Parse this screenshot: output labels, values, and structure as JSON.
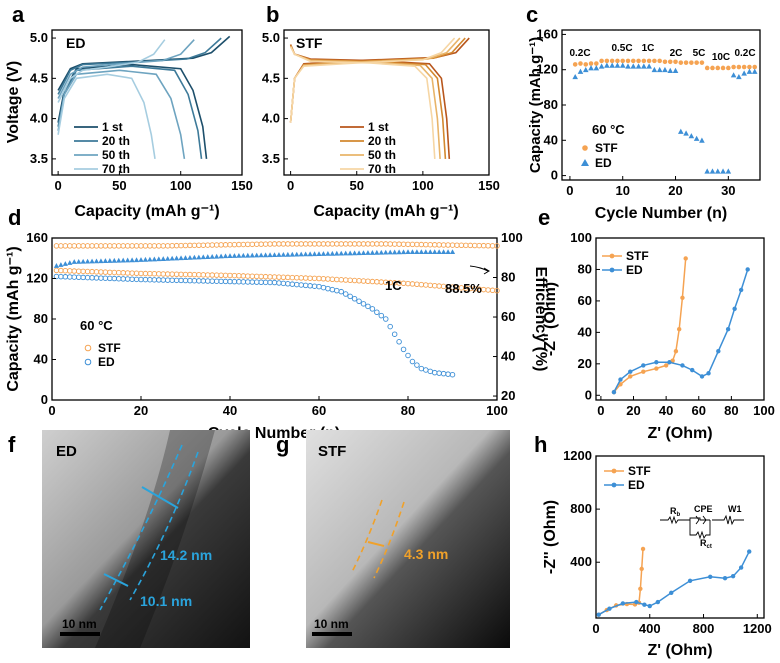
{
  "colors": {
    "orange": "#f5a352",
    "blue": "#3d8fd6",
    "ed": [
      "#1d4f6b",
      "#3d7a99",
      "#6ea4c0",
      "#a6cde0"
    ],
    "stf": [
      "#b8561c",
      "#d3882f",
      "#e8b469",
      "#f6d6a4"
    ],
    "teal": "#2aa4dc",
    "amber": "#f0a12a"
  },
  "chart_data": [
    {
      "panel": "a",
      "type": "line",
      "label": "ED",
      "xlabel": "Capacity (mAh g⁻¹)",
      "ylabel": "Voltage (V)",
      "xlim": [
        -5,
        150
      ],
      "ylim": [
        3.3,
        5.1
      ],
      "xticks": [
        "0",
        "50",
        "100",
        "150"
      ],
      "yticks": [
        "3.5",
        "4.0",
        "4.5",
        "5.0"
      ],
      "legend": [
        "1 st",
        "20 th",
        "50 th",
        "70 th"
      ],
      "series": [
        {
          "name": "1 st",
          "charge": [
            [
              0,
              4.35
            ],
            [
              10,
              4.62
            ],
            [
              20,
              4.68
            ],
            [
              60,
              4.71
            ],
            [
              110,
              4.75
            ],
            [
              125,
              4.82
            ],
            [
              140,
              5.02
            ]
          ],
          "discharge": [
            [
              0,
              3.95
            ],
            [
              5,
              4.35
            ],
            [
              15,
              4.62
            ],
            [
              60,
              4.67
            ],
            [
              100,
              4.62
            ],
            [
              110,
              4.35
            ],
            [
              118,
              3.9
            ],
            [
              121,
              3.5
            ]
          ]
        },
        {
          "name": "20 th",
          "charge": [
            [
              0,
              4.3
            ],
            [
              10,
              4.6
            ],
            [
              20,
              4.67
            ],
            [
              60,
              4.7
            ],
            [
              105,
              4.74
            ],
            [
              120,
              4.82
            ],
            [
              133,
              5.0
            ]
          ],
          "discharge": [
            [
              0,
              3.9
            ],
            [
              5,
              4.3
            ],
            [
              15,
              4.6
            ],
            [
              60,
              4.65
            ],
            [
              95,
              4.6
            ],
            [
              106,
              4.3
            ],
            [
              114,
              3.85
            ],
            [
              117,
              3.5
            ]
          ]
        },
        {
          "name": "50 th",
          "charge": [
            [
              0,
              4.25
            ],
            [
              10,
              4.55
            ],
            [
              20,
              4.64
            ],
            [
              50,
              4.68
            ],
            [
              85,
              4.72
            ],
            [
              100,
              4.8
            ],
            [
              111,
              4.98
            ]
          ],
          "discharge": [
            [
              0,
              3.85
            ],
            [
              5,
              4.3
            ],
            [
              15,
              4.55
            ],
            [
              50,
              4.6
            ],
            [
              80,
              4.55
            ],
            [
              92,
              4.25
            ],
            [
              100,
              3.8
            ],
            [
              103,
              3.5
            ]
          ]
        },
        {
          "name": "70 th",
          "charge": [
            [
              0,
              4.2
            ],
            [
              10,
              4.5
            ],
            [
              20,
              4.6
            ],
            [
              40,
              4.64
            ],
            [
              65,
              4.7
            ],
            [
              78,
              4.8
            ],
            [
              87,
              4.98
            ]
          ],
          "discharge": [
            [
              0,
              3.8
            ],
            [
              5,
              4.25
            ],
            [
              15,
              4.5
            ],
            [
              40,
              4.55
            ],
            [
              60,
              4.5
            ],
            [
              70,
              4.2
            ],
            [
              76,
              3.8
            ],
            [
              79,
              3.5
            ]
          ]
        }
      ]
    },
    {
      "panel": "b",
      "type": "line",
      "label": "STF",
      "xlabel": "Capacity (mAh g⁻¹)",
      "ylabel": "",
      "xlim": [
        -5,
        150
      ],
      "ylim": [
        3.3,
        5.1
      ],
      "xticks": [
        "0",
        "50",
        "100",
        "150"
      ],
      "yticks": [
        "3.5",
        "4.0",
        "4.5",
        "5.0"
      ],
      "legend": [
        "1 st",
        "20 th",
        "50 th",
        "70 th"
      ],
      "series": [
        {
          "name": "1 st",
          "charge": [
            [
              0,
              3.95
            ],
            [
              3,
              4.5
            ],
            [
              10,
              4.68
            ],
            [
              50,
              4.72
            ],
            [
              110,
              4.76
            ],
            [
              125,
              4.82
            ],
            [
              135,
              5.0
            ]
          ],
          "discharge": [
            [
              0,
              4.92
            ],
            [
              3,
              4.8
            ],
            [
              15,
              4.74
            ],
            [
              60,
              4.72
            ],
            [
              105,
              4.68
            ],
            [
              114,
              4.5
            ],
            [
              118,
              4.0
            ],
            [
              120,
              3.5
            ]
          ]
        },
        {
          "name": "20 th",
          "charge": [
            [
              0,
              3.95
            ],
            [
              3,
              4.5
            ],
            [
              10,
              4.67
            ],
            [
              50,
              4.71
            ],
            [
              108,
              4.75
            ],
            [
              122,
              4.82
            ],
            [
              132,
              5.0
            ]
          ],
          "discharge": [
            [
              0,
              4.91
            ],
            [
              3,
              4.8
            ],
            [
              15,
              4.73
            ],
            [
              60,
              4.71
            ],
            [
              102,
              4.67
            ],
            [
              111,
              4.5
            ],
            [
              115,
              4.0
            ],
            [
              117,
              3.5
            ]
          ]
        },
        {
          "name": "50 th",
          "charge": [
            [
              0,
              3.95
            ],
            [
              3,
              4.5
            ],
            [
              10,
              4.66
            ],
            [
              50,
              4.7
            ],
            [
              104,
              4.74
            ],
            [
              118,
              4.82
            ],
            [
              128,
              5.0
            ]
          ],
          "discharge": [
            [
              0,
              4.9
            ],
            [
              3,
              4.8
            ],
            [
              15,
              4.72
            ],
            [
              60,
              4.7
            ],
            [
              98,
              4.66
            ],
            [
              107,
              4.5
            ],
            [
              111,
              4.0
            ],
            [
              113,
              3.5
            ]
          ]
        },
        {
          "name": "70 th",
          "charge": [
            [
              0,
              3.95
            ],
            [
              3,
              4.5
            ],
            [
              10,
              4.65
            ],
            [
              50,
              4.69
            ],
            [
              100,
              4.73
            ],
            [
              114,
              4.82
            ],
            [
              124,
              5.0
            ]
          ],
          "discharge": [
            [
              0,
              4.89
            ],
            [
              3,
              4.8
            ],
            [
              15,
              4.71
            ],
            [
              60,
              4.69
            ],
            [
              94,
              4.65
            ],
            [
              103,
              4.5
            ],
            [
              107,
              4.0
            ],
            [
              109,
              3.5
            ]
          ]
        }
      ]
    },
    {
      "panel": "c",
      "type": "scatter",
      "title": "60 °C",
      "xlabel": "Cycle Number (n)",
      "ylabel": "Capacity (mAh g⁻¹)",
      "xlim": [
        -1.5,
        36
      ],
      "ylim": [
        -5,
        165
      ],
      "xticks": [
        "0",
        "10",
        "20",
        "30"
      ],
      "yticks": [
        "0",
        "40",
        "80",
        "120",
        "160"
      ],
      "rate_labels": [
        "0.2C",
        "0.5C",
        "1C",
        "2C",
        "5C",
        "10C",
        "0.2C"
      ],
      "legend": [
        "STF",
        "ED"
      ],
      "series": [
        {
          "name": "STF",
          "values": [
            126,
            127,
            126,
            127,
            127,
            130,
            130,
            130,
            130,
            130,
            130,
            130,
            130,
            130,
            130,
            130,
            130,
            129,
            129,
            129,
            128,
            128,
            128,
            128,
            128,
            122,
            122,
            122,
            122,
            122,
            123,
            123,
            123,
            123,
            123
          ]
        },
        {
          "name": "ED",
          "values": [
            112,
            118,
            120,
            122,
            122,
            124,
            125,
            125,
            125,
            125,
            124,
            124,
            124,
            124,
            124,
            120,
            120,
            120,
            119,
            119,
            50,
            48,
            45,
            42,
            40,
            5,
            5,
            5,
            5,
            5,
            114,
            112,
            116,
            118,
            118
          ]
        }
      ]
    },
    {
      "panel": "d",
      "type": "scatter",
      "label": "60 °C",
      "xlabel": "Cycle Number (n)",
      "ylabel": "Capacity (mAh g⁻¹)",
      "y2label": "Efficiency (%)",
      "xlim": [
        0,
        100
      ],
      "ylim": [
        0,
        160
      ],
      "y2lim": [
        18,
        100
      ],
      "xticks": [
        "0",
        "20",
        "40",
        "60",
        "80",
        "100"
      ],
      "yticks": [
        "0",
        "40",
        "80",
        "120",
        "160"
      ],
      "y2ticks": [
        "20",
        "40",
        "60",
        "80",
        "100"
      ],
      "annotations": [
        "1C",
        "88.5%"
      ],
      "legend": [
        "STF",
        "ED"
      ],
      "capacity_stf": [
        [
          1,
          128
        ],
        [
          20,
          125
        ],
        [
          40,
          123
        ],
        [
          60,
          120
        ],
        [
          80,
          115
        ],
        [
          100,
          108
        ]
      ],
      "capacity_ed": [
        [
          1,
          122
        ],
        [
          20,
          119
        ],
        [
          40,
          117
        ],
        [
          50,
          116
        ],
        [
          60,
          112
        ],
        [
          65,
          107
        ],
        [
          68,
          100
        ],
        [
          72,
          90
        ],
        [
          75,
          80
        ],
        [
          77,
          65
        ],
        [
          79,
          50
        ],
        [
          81,
          38
        ],
        [
          83,
          31
        ],
        [
          86,
          27
        ],
        [
          90,
          25
        ]
      ],
      "efficiency_stf": [
        [
          1,
          96
        ],
        [
          25,
          96
        ],
        [
          50,
          97
        ],
        [
          75,
          97
        ],
        [
          100,
          96
        ]
      ],
      "efficiency_ed": [
        [
          1,
          86
        ],
        [
          5,
          88
        ],
        [
          20,
          89
        ],
        [
          40,
          91
        ],
        [
          60,
          92
        ],
        [
          80,
          93
        ],
        [
          88,
          93
        ]
      ]
    },
    {
      "panel": "e",
      "type": "line",
      "xlabel": "Z' (Ohm)",
      "ylabel": "-Z'' (Ohm)",
      "xlim": [
        -3,
        100
      ],
      "ylim": [
        -3,
        100
      ],
      "xticks": [
        "0",
        "20",
        "40",
        "60",
        "80",
        "100"
      ],
      "yticks": [
        "0",
        "20",
        "40",
        "60",
        "80",
        "100"
      ],
      "legend": [
        "STF",
        "ED"
      ],
      "series": [
        {
          "name": "STF",
          "points": [
            [
              8,
              2
            ],
            [
              12,
              7
            ],
            [
              18,
              12
            ],
            [
              26,
              15
            ],
            [
              34,
              17
            ],
            [
              40,
              19
            ],
            [
              44,
              22
            ],
            [
              46,
              28
            ],
            [
              48,
              42
            ],
            [
              50,
              62
            ],
            [
              52,
              87
            ]
          ]
        },
        {
          "name": "ED",
          "points": [
            [
              8,
              2
            ],
            [
              12,
              10
            ],
            [
              18,
              15
            ],
            [
              26,
              19
            ],
            [
              34,
              21
            ],
            [
              42,
              21
            ],
            [
              50,
              19
            ],
            [
              56,
              16
            ],
            [
              62,
              12
            ],
            [
              66,
              14
            ],
            [
              72,
              28
            ],
            [
              78,
              42
            ],
            [
              82,
              55
            ],
            [
              86,
              67
            ],
            [
              90,
              80
            ]
          ]
        }
      ]
    },
    {
      "panel": "f",
      "type": "image",
      "label": "ED",
      "scale_bar": "10 nm",
      "measurements": [
        "14.2 nm",
        "10.1 nm"
      ]
    },
    {
      "panel": "g",
      "type": "image",
      "label": "STF",
      "scale_bar": "10 nm",
      "measurements": [
        "4.3 nm"
      ]
    },
    {
      "panel": "h",
      "type": "line",
      "xlabel": "Z' (Ohm)",
      "ylabel": "-Z'' (Ohm)",
      "xlim": [
        0,
        1250
      ],
      "ylim": [
        -20,
        1200
      ],
      "xticks": [
        "0",
        "400",
        "800",
        "1200"
      ],
      "yticks": [
        "400",
        "800",
        "1200"
      ],
      "legend": [
        "STF",
        "ED"
      ],
      "circuit_labels": [
        "Rₕ",
        "CPE",
        "W1",
        "Rᴄₜ"
      ],
      "series": [
        {
          "name": "STF",
          "points": [
            [
              20,
              5
            ],
            [
              80,
              40
            ],
            [
              150,
              75
            ],
            [
              230,
              85
            ],
            [
              290,
              82
            ],
            [
              320,
              95
            ],
            [
              330,
              200
            ],
            [
              340,
              350
            ],
            [
              350,
              500
            ]
          ]
        },
        {
          "name": "ED",
          "points": [
            [
              20,
              5
            ],
            [
              100,
              50
            ],
            [
              200,
              90
            ],
            [
              300,
              100
            ],
            [
              360,
              80
            ],
            [
              400,
              70
            ],
            [
              460,
              100
            ],
            [
              560,
              170
            ],
            [
              700,
              260
            ],
            [
              850,
              290
            ],
            [
              960,
              280
            ],
            [
              1020,
              295
            ],
            [
              1080,
              360
            ],
            [
              1140,
              480
            ]
          ]
        }
      ]
    }
  ],
  "panel_letters": [
    "a",
    "b",
    "c",
    "d",
    "e",
    "f",
    "g",
    "h"
  ]
}
